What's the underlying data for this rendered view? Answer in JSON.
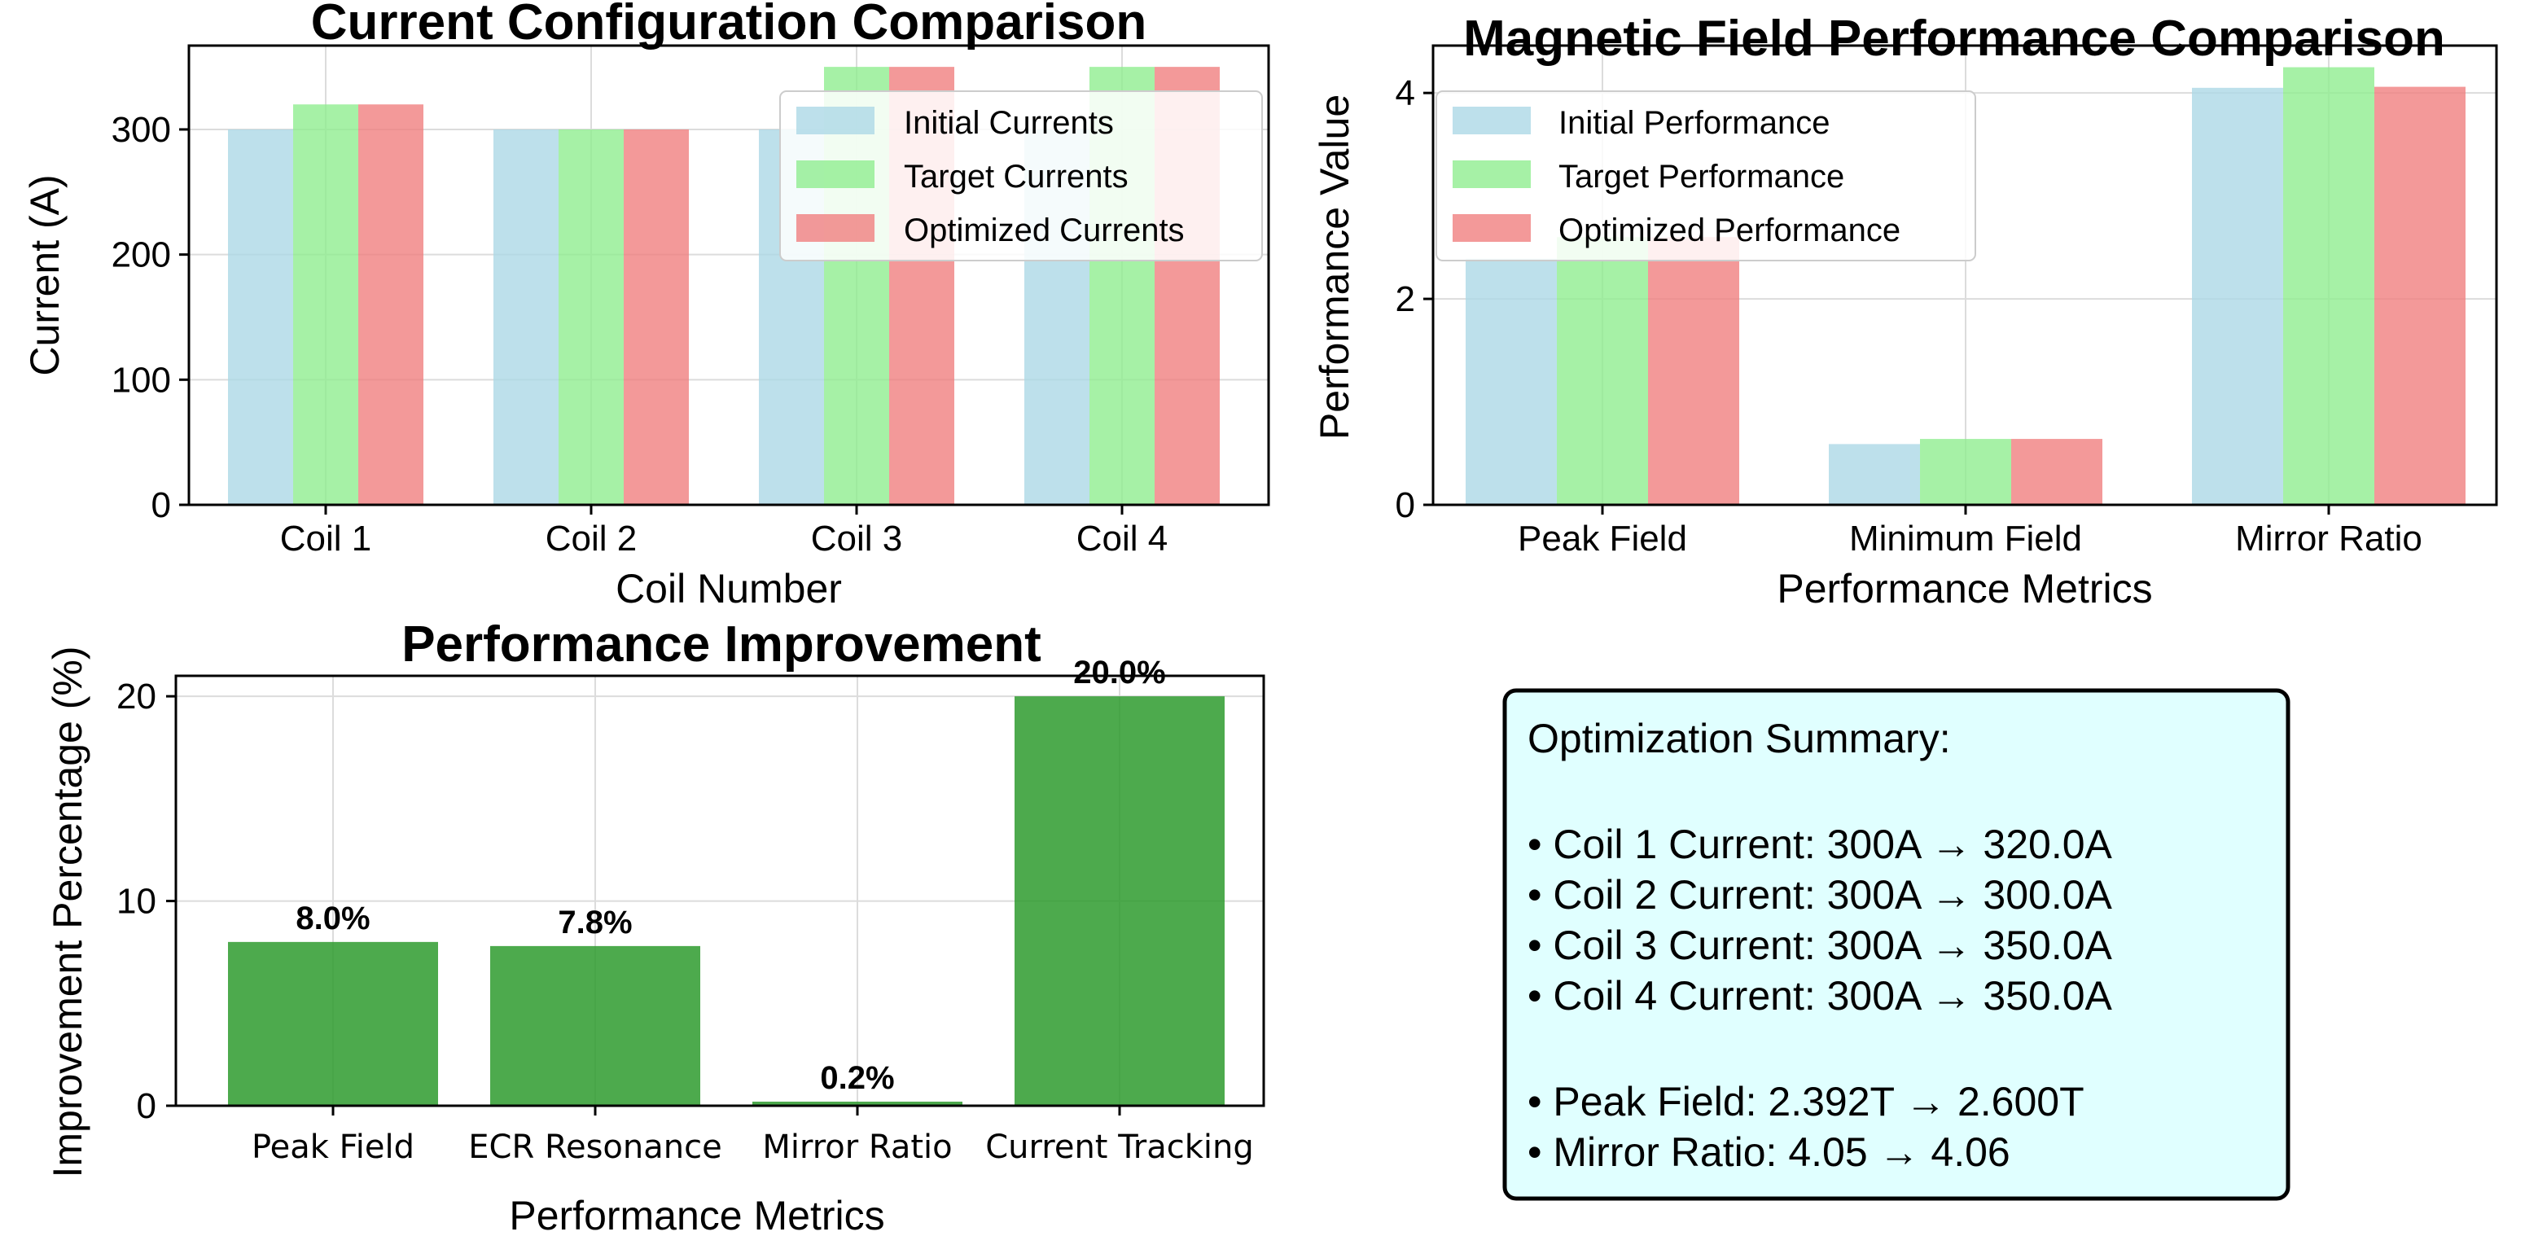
{
  "chart_data": [
    {
      "type": "bar",
      "title": "Current Configuration Comparison",
      "xlabel": "Coil Number",
      "ylabel": "Current (A)",
      "categories": [
        "Coil 1",
        "Coil 2",
        "Coil 3",
        "Coil 4"
      ],
      "series": [
        {
          "name": "Initial Currents",
          "values": [
            300,
            300,
            300,
            300
          ]
        },
        {
          "name": "Target Currents",
          "values": [
            320,
            300,
            350,
            350
          ]
        },
        {
          "name": "Optimized Currents",
          "values": [
            320,
            300,
            350,
            350
          ]
        }
      ],
      "ylim": [
        0,
        367
      ],
      "yticks": [
        0,
        100,
        200,
        300
      ],
      "ytick_labels": [
        "0",
        "100",
        "200",
        "300"
      ],
      "grid": true,
      "legend_position": "upper right"
    },
    {
      "type": "bar",
      "title": "Magnetic Field Performance Comparison",
      "xlabel": "Performance Metrics",
      "ylabel": "Performance Value",
      "categories": [
        "Peak Field",
        "Minimum Field",
        "Mirror Ratio"
      ],
      "series": [
        {
          "name": "Initial Performance",
          "values": [
            2.392,
            0.59,
            4.05
          ]
        },
        {
          "name": "Target Performance",
          "values": [
            2.6,
            0.64,
            4.25
          ]
        },
        {
          "name": "Optimized Performance",
          "values": [
            2.6,
            0.64,
            4.06
          ]
        }
      ],
      "ylim": [
        0,
        4.46
      ],
      "yticks": [
        0,
        2,
        4
      ],
      "ytick_labels": [
        "0",
        "2",
        "4"
      ],
      "grid": true,
      "legend_position": "upper left"
    },
    {
      "type": "bar",
      "title": "Performance Improvement",
      "xlabel": "Performance Metrics",
      "ylabel": "Improvement Percentage (%)",
      "categories": [
        "Peak Field",
        "ECR Resonance",
        "Mirror Ratio",
        "Current Tracking"
      ],
      "values": [
        8.0,
        7.8,
        0.2,
        20.0
      ],
      "data_labels": [
        "8.0%",
        "7.8%",
        "0.2%",
        "20.0%"
      ],
      "ylim": [
        0,
        21
      ],
      "yticks": [
        0,
        10,
        20
      ],
      "ytick_labels": [
        "0",
        "10",
        "20"
      ],
      "grid": true
    }
  ],
  "colors": {
    "initial": "#add8e6",
    "target": "#90ee90",
    "optimized": "#f08080",
    "improvement": "#2e9b2e",
    "summary_bg": "#e0ffff"
  },
  "summary": {
    "title": "Optimization Summary:",
    "coil_lines": [
      "• Coil 1 Current: 300A → 320.0A",
      "• Coil 2 Current: 300A → 300.0A",
      "• Coil 3 Current: 300A → 350.0A",
      "• Coil 4 Current: 300A → 350.0A"
    ],
    "performance_lines": [
      "• Peak Field: 2.392T → 2.600T",
      "• Mirror Ratio: 4.05 → 4.06"
    ]
  }
}
